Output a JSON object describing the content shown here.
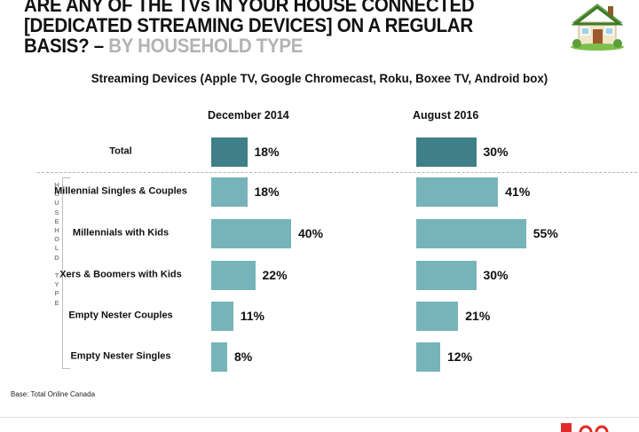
{
  "title": {
    "main": "ARE ANY OF THE TVs IN YOUR HOUSE CONNECTED [DEDICATED STREAMING DEVICES] ON A REGULAR BASIS? –",
    "suffix": "BY HOUSEHOLD TYPE"
  },
  "subtitle": "Streaming Devices (Apple TV, Google Chromecast, Roku, Boxee TV,  Android box)",
  "household_label": "HOUSEHOLD TYPE",
  "base_note": "Base: Total Online Canada",
  "icons": {
    "top_right": "house-icon",
    "bottom_right": "brand-logo"
  },
  "colors": {
    "total_bar": "#3f7f87",
    "segment_bar": "#76b4b9"
  },
  "chart_data": {
    "type": "bar",
    "orientation": "horizontal",
    "categories": [
      "Total",
      "Millennial Singles & Couples",
      "Millennials with Kids",
      "Xers & Boomers with Kids",
      "Empty Nester Couples",
      "Empty Nester Singles"
    ],
    "series": [
      {
        "name": "December 2014",
        "values": [
          18,
          18,
          40,
          22,
          11,
          8
        ]
      },
      {
        "name": "August 2016",
        "values": [
          30,
          41,
          55,
          30,
          21,
          12
        ]
      }
    ],
    "value_suffix": "%",
    "xlim": [
      0,
      55
    ]
  }
}
